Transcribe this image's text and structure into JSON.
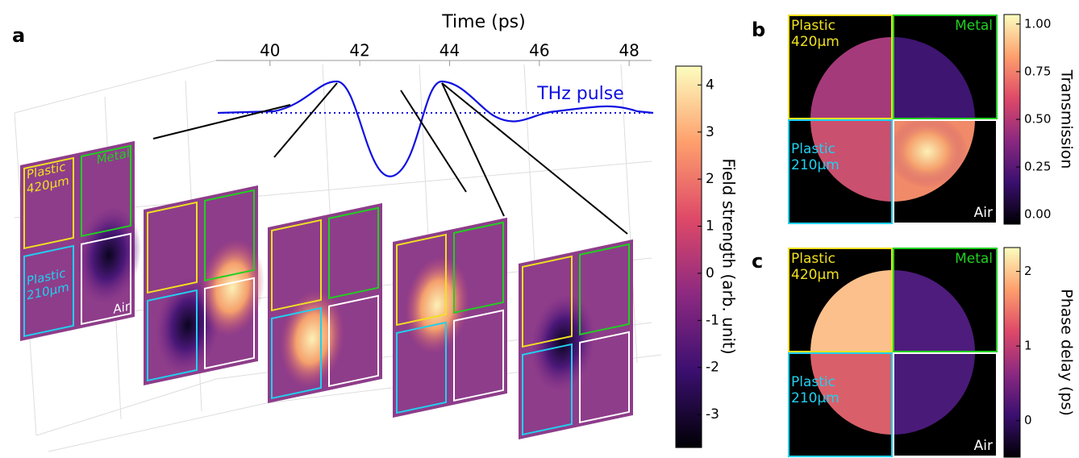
{
  "panel_a": {
    "label": "a",
    "time_axis": {
      "title": "Time (ps)",
      "xlim": [
        38.8,
        48.5
      ],
      "xticks": [
        40,
        42,
        44,
        46,
        48
      ]
    },
    "pulse_label": "THz pulse",
    "regions": {
      "plastic_420": [
        "Plastic",
        "420μm"
      ],
      "metal": "Metal",
      "plastic_210": [
        "Plastic",
        "210μm"
      ],
      "air": "Air"
    },
    "colorbar": {
      "title": "Field strength (arb. unit)",
      "ylim": [
        -3.7,
        4.4
      ],
      "yticks": [
        4,
        3,
        2,
        1,
        0,
        -1,
        -2,
        -3
      ]
    }
  },
  "panel_b": {
    "label": "b",
    "regions": {
      "plastic_420": [
        "Plastic",
        "420μm"
      ],
      "metal": "Metal",
      "plastic_210": [
        "Plastic",
        "210μm"
      ],
      "air": "Air"
    },
    "colorbar": {
      "title": "Transmission",
      "ylim": [
        -0.05,
        1.05
      ],
      "yticks": [
        {
          "value": 1,
          "label": "1.00"
        },
        {
          "value": 0.75,
          "label": "0.75"
        },
        {
          "value": 0.5,
          "label": "0.50"
        },
        {
          "value": 0.25,
          "label": "0.25"
        },
        {
          "value": 0,
          "label": "0.00"
        }
      ]
    }
  },
  "panel_c": {
    "label": "c",
    "regions": {
      "plastic_420": [
        "Plastic",
        "420μm"
      ],
      "metal": "Metal",
      "plastic_210": [
        "Plastic",
        "210μm"
      ],
      "air": "Air"
    },
    "colorbar": {
      "title": "Phase delay (ps)",
      "ylim": [
        -0.49,
        2.32
      ],
      "yticks": [
        2,
        1,
        0
      ]
    }
  }
}
